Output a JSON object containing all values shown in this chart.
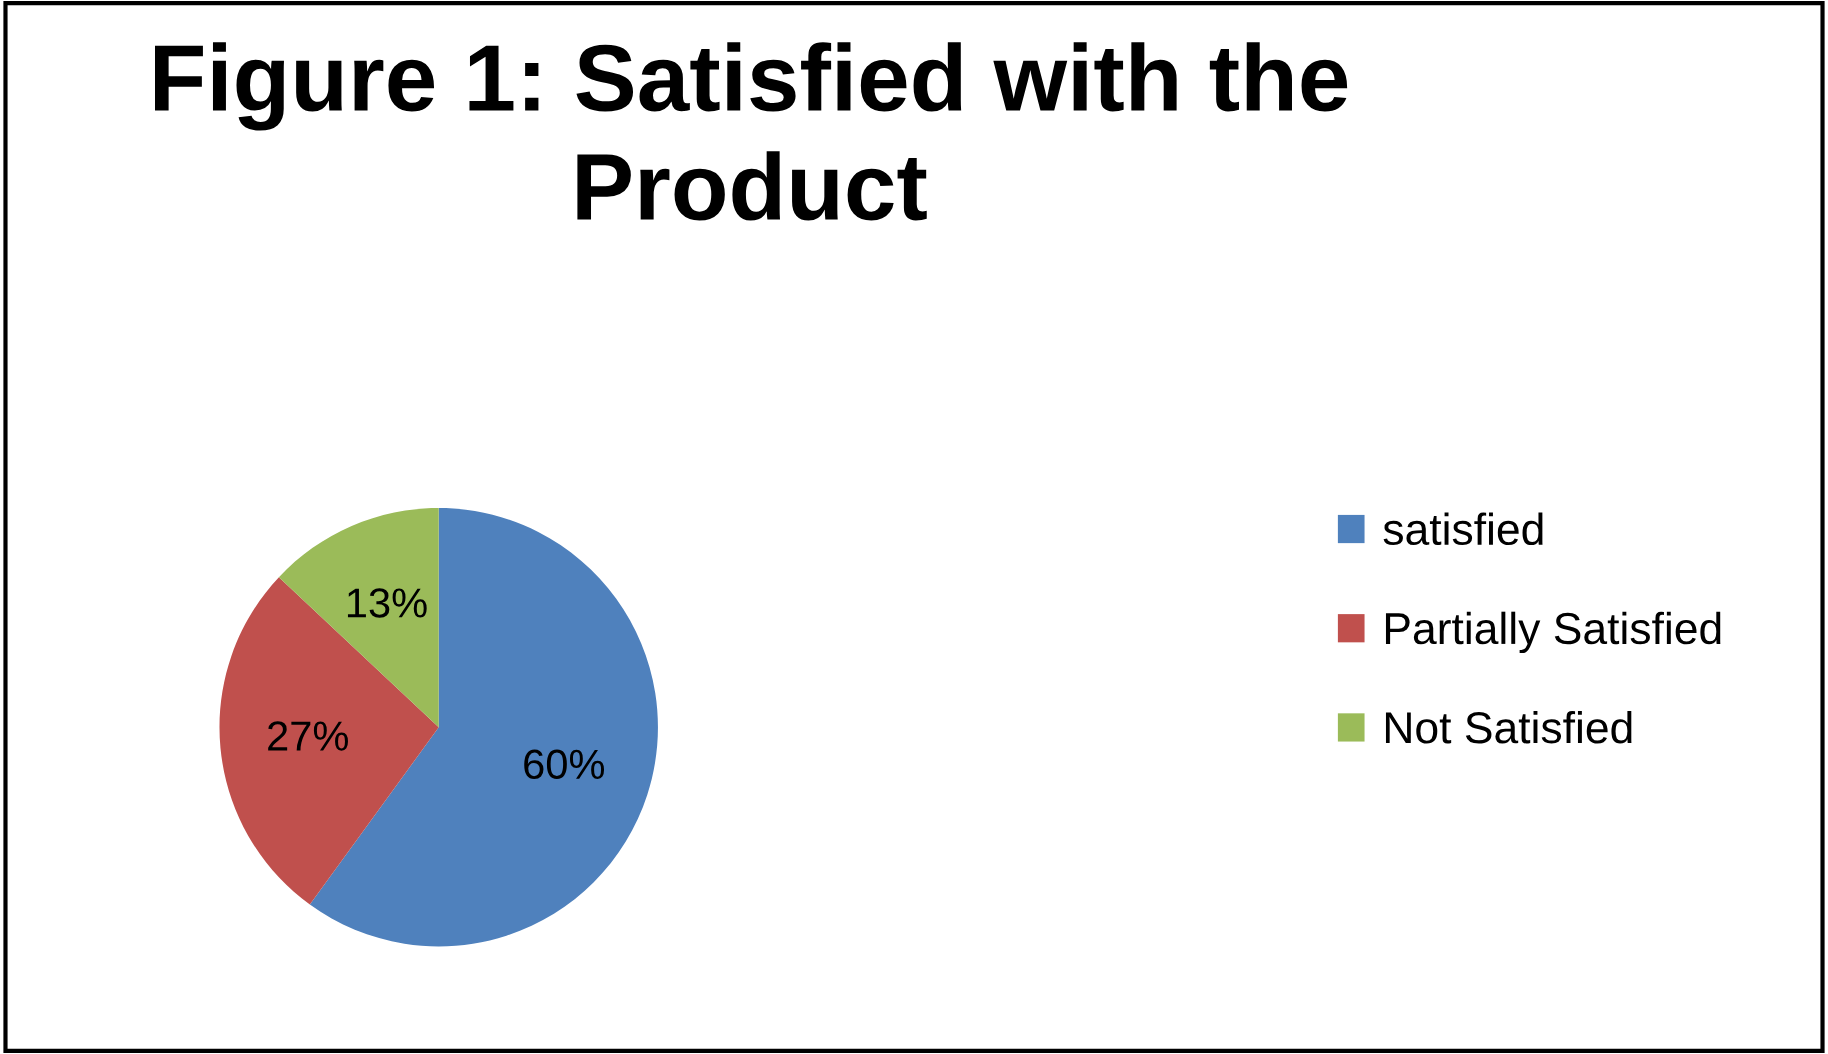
{
  "chart_data": {
    "type": "pie",
    "title": "Figure 1: Satisfied with the Product",
    "categories": [
      "satisfied",
      "Partially Satisfied",
      "Not Satisfied"
    ],
    "values": [
      60,
      27,
      13
    ],
    "colors": [
      "#4f81bd",
      "#c0504d",
      "#9bbb59"
    ],
    "value_labels": [
      "60%",
      "27%",
      "13%"
    ],
    "legend": "right"
  }
}
